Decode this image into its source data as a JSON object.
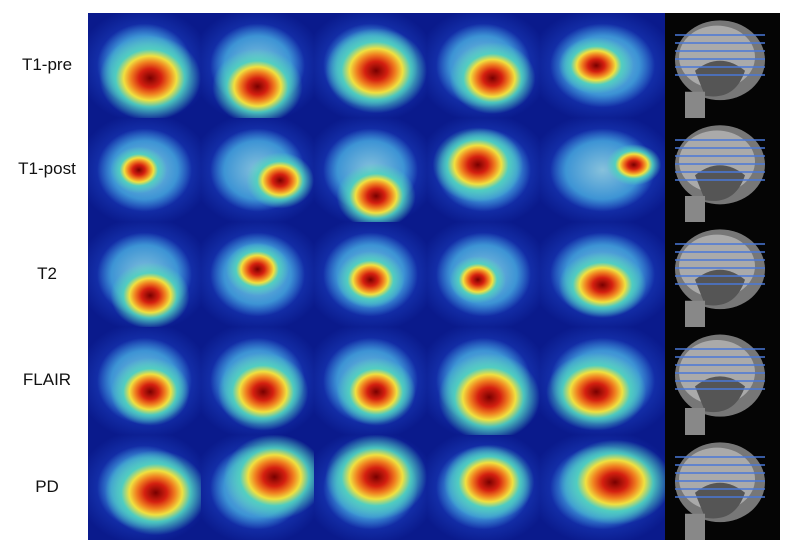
{
  "rows": [
    {
      "label": "T1-pre"
    },
    {
      "label": "T1-post"
    },
    {
      "label": "T2"
    },
    {
      "label": "FLAIR"
    },
    {
      "label": "PD"
    }
  ]
}
